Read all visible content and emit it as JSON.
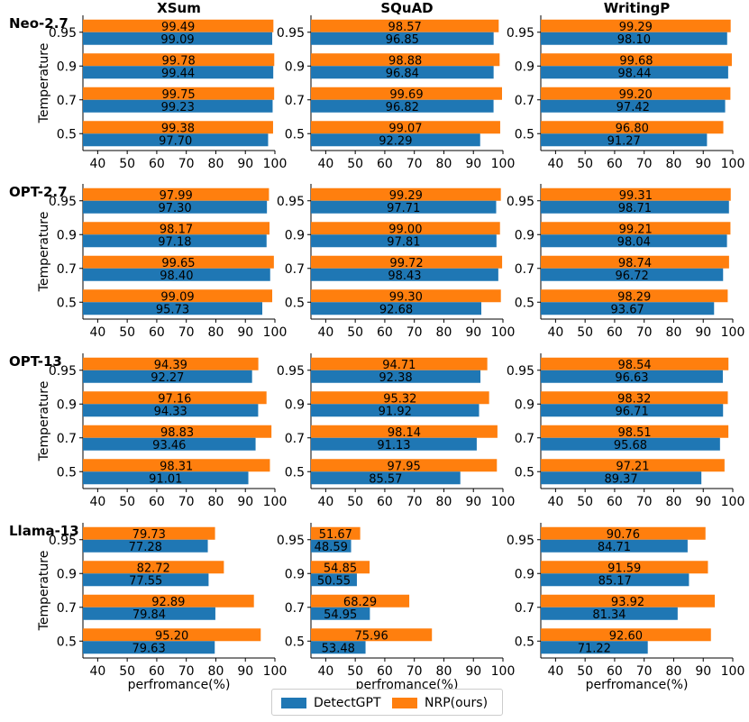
{
  "chart_data": {
    "type": "bar",
    "orientation": "horizontal",
    "columns": [
      "XSum",
      "SQuAD",
      "WritingP"
    ],
    "rows": [
      "Neo-2.7",
      "OPT-2.7",
      "OPT-13",
      "Llama-13"
    ],
    "categories": [
      "0.95",
      "0.9",
      "0.7",
      "0.5"
    ],
    "ylabel": "Temperature",
    "xlabel": "perfromance(%)",
    "xlim": [
      35,
      100
    ],
    "xticks": [
      "40",
      "50",
      "60",
      "70",
      "80",
      "90",
      "100"
    ],
    "legend": {
      "placement": "bottom-center",
      "entries": [
        "DetectGPT",
        "NRP(ours)"
      ]
    },
    "colors": {
      "DetectGPT": "#1f77b4",
      "NRP": "#ff7f0e"
    },
    "data": {
      "Neo-2.7": {
        "XSum": {
          "DetectGPT": [
            99.09,
            99.44,
            99.23,
            97.7
          ],
          "NRP": [
            99.49,
            99.78,
            99.75,
            99.38
          ]
        },
        "SQuAD": {
          "DetectGPT": [
            96.85,
            96.84,
            96.82,
            92.29
          ],
          "NRP": [
            98.57,
            98.88,
            99.69,
            99.07
          ]
        },
        "WritingP": {
          "DetectGPT": [
            98.1,
            98.44,
            97.42,
            91.27
          ],
          "NRP": [
            99.29,
            99.68,
            99.2,
            96.8
          ]
        }
      },
      "OPT-2.7": {
        "XSum": {
          "DetectGPT": [
            97.3,
            97.18,
            98.4,
            95.73
          ],
          "NRP": [
            97.99,
            98.17,
            99.65,
            99.09
          ]
        },
        "SQuAD": {
          "DetectGPT": [
            97.71,
            97.81,
            98.43,
            92.68
          ],
          "NRP": [
            99.29,
            99.0,
            99.72,
            99.3
          ]
        },
        "WritingP": {
          "DetectGPT": [
            98.71,
            98.04,
            96.72,
            93.67
          ],
          "NRP": [
            99.31,
            99.21,
            98.74,
            98.29
          ]
        }
      },
      "OPT-13": {
        "XSum": {
          "DetectGPT": [
            92.27,
            94.33,
            93.46,
            91.01
          ],
          "NRP": [
            94.39,
            97.16,
            98.83,
            98.31
          ]
        },
        "SQuAD": {
          "DetectGPT": [
            92.38,
            91.92,
            91.13,
            85.57
          ],
          "NRP": [
            94.71,
            95.32,
            98.14,
            97.95
          ]
        },
        "WritingP": {
          "DetectGPT": [
            96.63,
            96.71,
            95.68,
            89.37
          ],
          "NRP": [
            98.54,
            98.32,
            98.51,
            97.21
          ]
        }
      },
      "Llama-13": {
        "XSum": {
          "DetectGPT": [
            77.28,
            77.55,
            79.84,
            79.63
          ],
          "NRP": [
            79.73,
            82.72,
            92.89,
            95.2
          ]
        },
        "SQuAD": {
          "DetectGPT": [
            48.59,
            50.55,
            54.95,
            53.48
          ],
          "NRP": [
            51.67,
            54.85,
            68.29,
            75.96
          ]
        },
        "WritingP": {
          "DetectGPT": [
            84.71,
            85.17,
            81.34,
            71.22
          ],
          "NRP": [
            90.76,
            91.59,
            93.92,
            92.6
          ]
        }
      }
    }
  }
}
